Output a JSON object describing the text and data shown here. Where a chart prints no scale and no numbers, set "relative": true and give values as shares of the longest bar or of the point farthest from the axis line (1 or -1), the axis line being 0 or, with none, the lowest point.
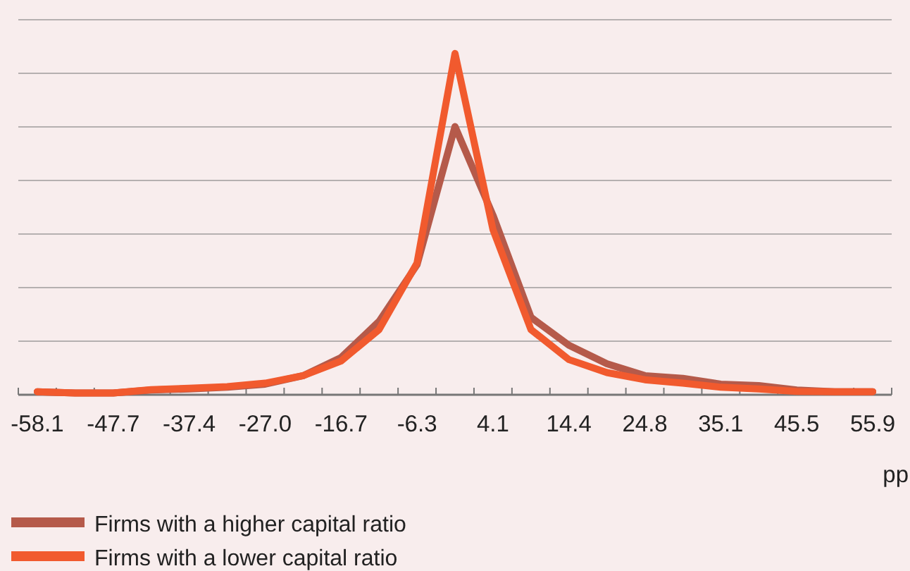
{
  "chart_data": {
    "type": "line",
    "relative": true,
    "xlabel": "pp",
    "grid": "y",
    "legend": "bottom",
    "marker": "none",
    "line_style": "solid",
    "categories": [
      "-58.1",
      null,
      "-47.7",
      null,
      "-37.4",
      null,
      "-27.0",
      null,
      "-16.7",
      null,
      "-6.3",
      null,
      "4.1",
      null,
      "14.4",
      null,
      "24.8",
      null,
      "35.1",
      null,
      "45.5",
      null,
      "55.9"
    ],
    "series": [
      {
        "name": "Firms with a higher capital ratio",
        "color": "#b55a4a",
        "values": [
          0.009,
          0.005,
          0.005,
          0.014,
          0.017,
          0.022,
          0.031,
          0.056,
          0.109,
          0.215,
          0.381,
          0.786,
          0.526,
          0.227,
          0.145,
          0.091,
          0.056,
          0.048,
          0.031,
          0.027,
          0.014,
          0.009,
          0.009
        ]
      },
      {
        "name": "Firms with a lower capital ratio",
        "color": "#f15a2e",
        "values": [
          0.009,
          0.005,
          0.005,
          0.015,
          0.019,
          0.024,
          0.034,
          0.056,
          0.099,
          0.191,
          0.386,
          1,
          0.484,
          0.191,
          0.103,
          0.065,
          0.044,
          0.034,
          0.022,
          0.017,
          0.01,
          0.009,
          0.009
        ]
      }
    ]
  }
}
